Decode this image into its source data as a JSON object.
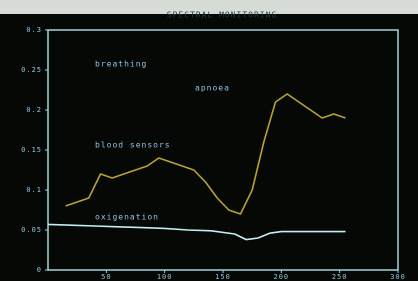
{
  "chart_data": {
    "type": "line",
    "title": "SPECTRAL MONITORING",
    "annotations": [
      "breathing",
      "apnoea"
    ],
    "xlim": [
      0,
      300
    ],
    "xticks": [
      50,
      100,
      150,
      200,
      250,
      300
    ],
    "ylim": [
      0,
      0.3
    ],
    "yticks": [
      0,
      0.05,
      0.1,
      0.15,
      0.2,
      0.25,
      0.3
    ],
    "series": [
      {
        "name": "blood sensors",
        "color": "#b9a234",
        "x": [
          15,
          25,
          35,
          45,
          55,
          65,
          75,
          85,
          95,
          105,
          115,
          125,
          135,
          145,
          155,
          165,
          175,
          185,
          195,
          205,
          215,
          225,
          235,
          245,
          255
        ],
        "values": [
          0.08,
          0.085,
          0.09,
          0.12,
          0.115,
          0.12,
          0.125,
          0.13,
          0.14,
          0.135,
          0.13,
          0.125,
          0.11,
          0.09,
          0.075,
          0.07,
          0.1,
          0.16,
          0.21,
          0.22,
          0.21,
          0.2,
          0.19,
          0.195,
          0.19
        ]
      },
      {
        "name": "oxigenation",
        "color": "#c4eef0",
        "x": [
          0,
          20,
          40,
          60,
          80,
          100,
          120,
          140,
          160,
          170,
          180,
          190,
          200,
          220,
          240,
          255
        ],
        "values": [
          0.057,
          0.056,
          0.055,
          0.054,
          0.053,
          0.052,
          0.05,
          0.049,
          0.045,
          0.038,
          0.04,
          0.046,
          0.048,
          0.048,
          0.048,
          0.048
        ]
      }
    ]
  }
}
